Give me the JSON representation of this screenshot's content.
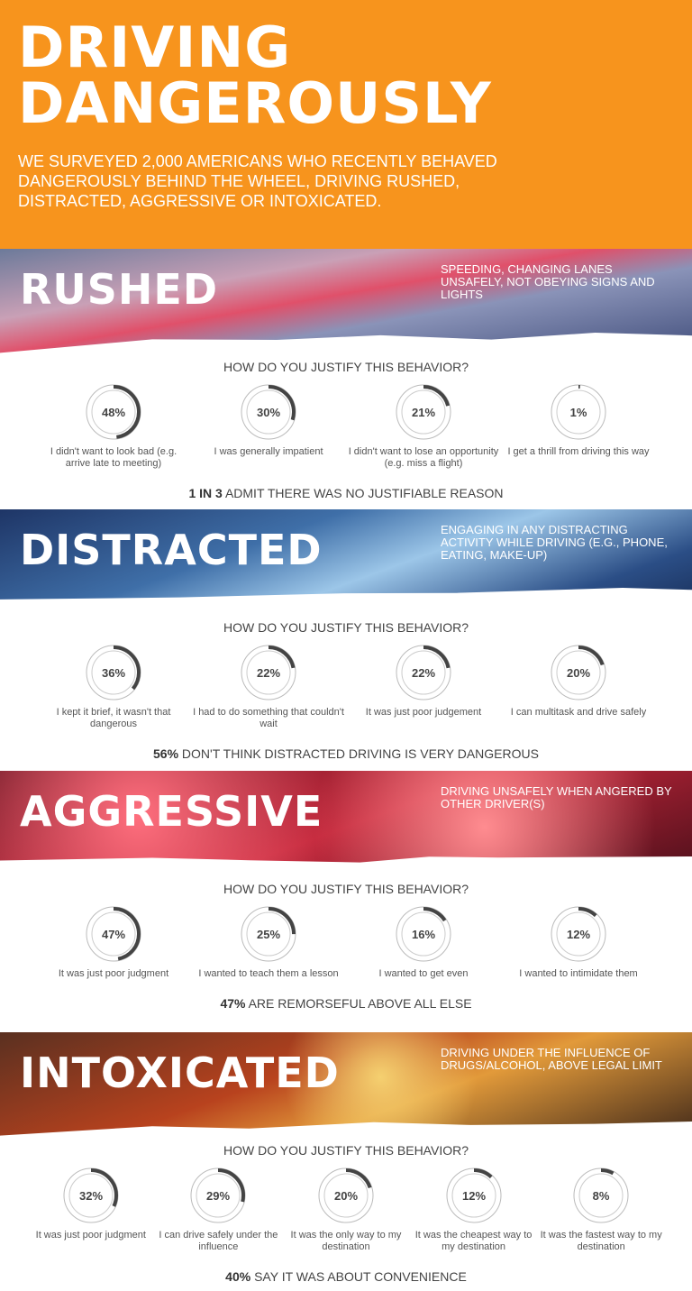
{
  "header": {
    "title_line1": "DRIVING",
    "title_line2": "DANGEROUSLY",
    "subtitle": "We surveyed 2,000 Americans who recently behaved dangerously behind the wheel, driving rushed, distracted, aggressive or intoxicated."
  },
  "colors": {
    "orange": "#F7941D",
    "ring_fill": "#444444",
    "ring_track": "#cccccc"
  },
  "sections": [
    {
      "title": "RUSHED",
      "description": "Speeding, changing lanes unsafely, not obeying signs and lights",
      "question": "HOW DO YOU JUSTIFY THIS BEHAVIOR?",
      "items": [
        {
          "value": 48,
          "label": "48%",
          "text": "I didn't want to look bad (e.g. arrive late to meeting)"
        },
        {
          "value": 30,
          "label": "30%",
          "text": "I was generally impatient"
        },
        {
          "value": 21,
          "label": "21%",
          "text": "I didn't want to lose an opportunity (e.g. miss a flight)"
        },
        {
          "value": 1,
          "label": "1%",
          "text": "I get a thrill from driving this way"
        }
      ],
      "summary_bold": "1 IN 3",
      "summary": " ADMIT THERE WAS NO JUSTIFIABLE REASON"
    },
    {
      "title": "DISTRACTED",
      "description": "Engaging in any distracting activity while driving (e.g., phone, eating, make-up)",
      "question": "HOW DO YOU JUSTIFY THIS BEHAVIOR?",
      "items": [
        {
          "value": 36,
          "label": "36%",
          "text": "I kept it brief, it wasn't that dangerous"
        },
        {
          "value": 22,
          "label": "22%",
          "text": "I had to do something that couldn't wait"
        },
        {
          "value": 22,
          "label": "22%",
          "text": "It was just poor judgement"
        },
        {
          "value": 20,
          "label": "20%",
          "text": "I can multitask and drive safely"
        }
      ],
      "summary_bold": "56%",
      "summary": " DON'T THINK DISTRACTED DRIVING IS VERY DANGEROUS"
    },
    {
      "title": "AGGRESSIVE",
      "description": "Driving unsafely when angered by other driver(s)",
      "question": "HOW DO YOU JUSTIFY THIS BEHAVIOR?",
      "items": [
        {
          "value": 47,
          "label": "47%",
          "text": "It was just poor judgment"
        },
        {
          "value": 25,
          "label": "25%",
          "text": "I wanted to teach them a lesson"
        },
        {
          "value": 16,
          "label": "16%",
          "text": "I wanted to get even"
        },
        {
          "value": 12,
          "label": "12%",
          "text": "I wanted to intimidate them"
        }
      ],
      "summary_bold": "47%",
      "summary": " ARE REMORSEFUL ABOVE ALL ELSE"
    },
    {
      "title": "INTOXICATED",
      "description": "Driving under the influence of drugs/alcohol, above legal limit",
      "question": "HOW DO YOU JUSTIFY THIS BEHAVIOR?",
      "items": [
        {
          "value": 32,
          "label": "32%",
          "text": "It was just poor judgment"
        },
        {
          "value": 29,
          "label": "29%",
          "text": "I can drive safely under the influence"
        },
        {
          "value": 20,
          "label": "20%",
          "text": "It was the only way to my destination"
        },
        {
          "value": 12,
          "label": "12%",
          "text": "It was the cheapest way to my destination"
        },
        {
          "value": 8,
          "label": "8%",
          "text": "It was the fastest way to my destination"
        }
      ],
      "summary_bold": "40%",
      "summary": " SAY IT WAS ABOUT CONVENIENCE"
    }
  ]
}
